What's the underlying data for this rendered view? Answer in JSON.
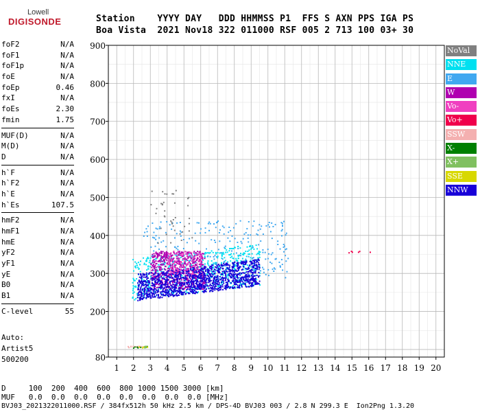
{
  "logo": {
    "top_text": "Lowell",
    "main_text": "DIGISONDE"
  },
  "header": {
    "line1": "Station    YYYY DAY   DDD HHMMSS P1  FFS S AXN PPS IGA PS",
    "line2": "Boa Vista  2021 Nov18 322 011000 RSF 005 2 713 100 03+ 30"
  },
  "params_groups": [
    [
      {
        "name": "foF2",
        "value": "N/A"
      },
      {
        "name": "foF1",
        "value": "N/A"
      },
      {
        "name": "foF1p",
        "value": "N/A"
      },
      {
        "name": "foE",
        "value": "N/A"
      },
      {
        "name": "foEp",
        "value": "0.46"
      },
      {
        "name": "fxI",
        "value": "N/A"
      },
      {
        "name": "foEs",
        "value": "2.30"
      },
      {
        "name": "fmin",
        "value": "1.75"
      }
    ],
    [
      {
        "name": "MUF(D)",
        "value": "N/A"
      },
      {
        "name": "M(D)",
        "value": "N/A"
      },
      {
        "name": "D",
        "value": "N/A"
      }
    ],
    [
      {
        "name": "h`F",
        "value": "N/A"
      },
      {
        "name": "h`F2",
        "value": "N/A"
      },
      {
        "name": "h`E",
        "value": "N/A"
      },
      {
        "name": "h`Es",
        "value": "107.5"
      }
    ],
    [
      {
        "name": "hmF2",
        "value": "N/A"
      },
      {
        "name": "hmF1",
        "value": "N/A"
      },
      {
        "name": "hmE",
        "value": "N/A"
      },
      {
        "name": "yF2",
        "value": "N/A"
      },
      {
        "name": "yF1",
        "value": "N/A"
      },
      {
        "name": "yE",
        "value": "N/A"
      },
      {
        "name": "B0",
        "value": "N/A"
      },
      {
        "name": "B1",
        "value": "N/A"
      }
    ],
    [
      {
        "name": "C-level",
        "value": "55"
      }
    ]
  ],
  "autoscaling": {
    "line1": "Auto:",
    "line2": "Artist5",
    "line3": "500200"
  },
  "footer": {
    "d_row": "D     100  200  400  600  800 1000 1500 3000 [km]",
    "muf_row": "MUF   0.0  0.0  0.0  0.0  0.0  0.0  0.0  0.0 [MHz]",
    "file_row": "BVJ03_2021322011000.RSF / 384fx512h 50 kHz 2.5 km / DPS-4D BVJ03 003 / 2.8 N 299.3 E  Ion2Png 1.3.20"
  },
  "legend": [
    {
      "label": "NoVal",
      "color": "#808080"
    },
    {
      "label": "NNE",
      "color": "#00e0f0"
    },
    {
      "label": "E",
      "color": "#40a8f0"
    },
    {
      "label": "W",
      "color": "#b000b0"
    },
    {
      "label": "Vo-",
      "color": "#f040c0"
    },
    {
      "label": "Vo+",
      "color": "#f0004c"
    },
    {
      "label": "SSW",
      "color": "#f4b0b0"
    },
    {
      "label": "X-",
      "color": "#008000"
    },
    {
      "label": "X+",
      "color": "#80c060"
    },
    {
      "label": "SSE",
      "color": "#d8d800"
    },
    {
      "label": "NNW",
      "color": "#1800d8"
    }
  ],
  "chart_data": {
    "type": "scatter",
    "xlabel": "",
    "ylabel": "",
    "xlim": [
      0.5,
      20.5
    ],
    "ylim": [
      80,
      900
    ],
    "x_ticks": [
      1,
      2,
      3,
      4,
      5,
      6,
      7,
      8,
      9,
      10,
      11,
      12,
      13,
      14,
      15,
      16,
      17,
      18,
      19,
      20
    ],
    "y_ticks": [
      80,
      200,
      300,
      400,
      500,
      600,
      700,
      800,
      900
    ],
    "grid": true,
    "clusters": [
      {
        "name": "NNE",
        "color": "#00e0f0",
        "x": [
          1.9,
          9.5
        ],
        "y": [
          230,
          380
        ],
        "n": 700
      },
      {
        "name": "E",
        "color": "#40a8f0",
        "x": [
          2.5,
          11.2
        ],
        "y": [
          290,
          440
        ],
        "n": 260
      },
      {
        "name": "W",
        "color": "#b000b0",
        "x": [
          3.0,
          6.2
        ],
        "y": [
          260,
          360
        ],
        "n": 600
      },
      {
        "name": "NNW",
        "color": "#1800d8",
        "x": [
          2.2,
          9.5
        ],
        "y": [
          230,
          340
        ],
        "n": 1300
      },
      {
        "name": "Vo-",
        "color": "#f040c0",
        "x": [
          4.0,
          6.0
        ],
        "y": [
          300,
          360
        ],
        "n": 120
      },
      {
        "name": "Vo+",
        "color": "#f0004c",
        "x": [
          14.5,
          16.5
        ],
        "y": [
          355,
          362
        ],
        "n": 6
      },
      {
        "name": "SSW",
        "color": "#f4b0b0",
        "x": [
          1.6,
          2.6
        ],
        "y": [
          105,
          110
        ],
        "n": 14
      },
      {
        "name": "X-",
        "color": "#008000",
        "x": [
          1.6,
          2.8
        ],
        "y": [
          105,
          110
        ],
        "n": 10
      },
      {
        "name": "X+",
        "color": "#80c060",
        "x": [
          2.6,
          2.8
        ],
        "y": [
          105,
          110
        ],
        "n": 6
      },
      {
        "name": "SSE",
        "color": "#d8d800",
        "x": [
          2.2,
          2.8
        ],
        "y": [
          105,
          110
        ],
        "n": 4
      },
      {
        "name": "NoVal",
        "color": "#808080",
        "x": [
          3.0,
          5.5
        ],
        "y": [
          380,
          520
        ],
        "n": 40
      }
    ]
  }
}
